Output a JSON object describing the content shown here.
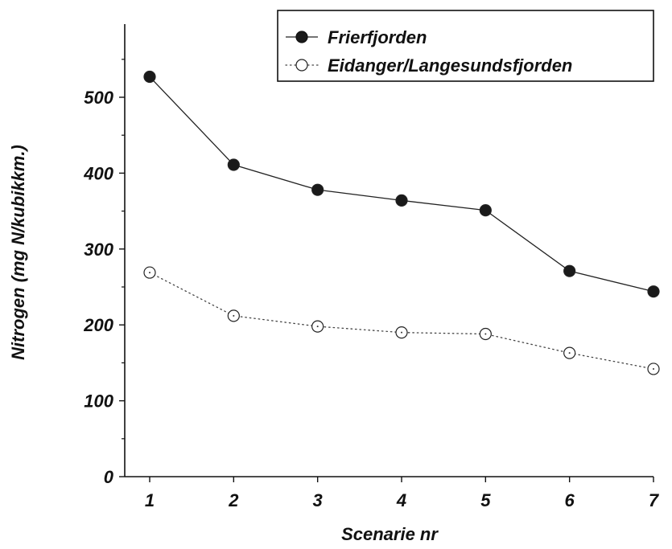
{
  "chart_data": {
    "type": "line",
    "xlabel": "Scenarie nr",
    "ylabel": "Nitrogen (mg N/kubikkm.)",
    "xlim": [
      1,
      7
    ],
    "ylim": [
      0,
      550
    ],
    "x": [
      1,
      2,
      3,
      4,
      5,
      6,
      7
    ],
    "x_tick_labels": [
      "1",
      "2",
      "3",
      "4",
      "5",
      "6",
      "7"
    ],
    "y_ticks": [
      0,
      100,
      200,
      300,
      400,
      500
    ],
    "y_tick_labels": [
      "0",
      "100",
      "200",
      "300",
      "400",
      "500"
    ],
    "grid": false,
    "legend_position": "top-right",
    "series": [
      {
        "name": "Frierfjorden",
        "values": [
          527,
          411,
          378,
          364,
          351,
          271,
          244
        ],
        "line_style": "solid",
        "marker": "filled-circle",
        "color": "#222222"
      },
      {
        "name": "Eidanger/Langesundsfjorden",
        "values": [
          269,
          212,
          198,
          190,
          188,
          163,
          142
        ],
        "line_style": "dotted",
        "marker": "open-circle",
        "color": "#222222"
      }
    ]
  }
}
